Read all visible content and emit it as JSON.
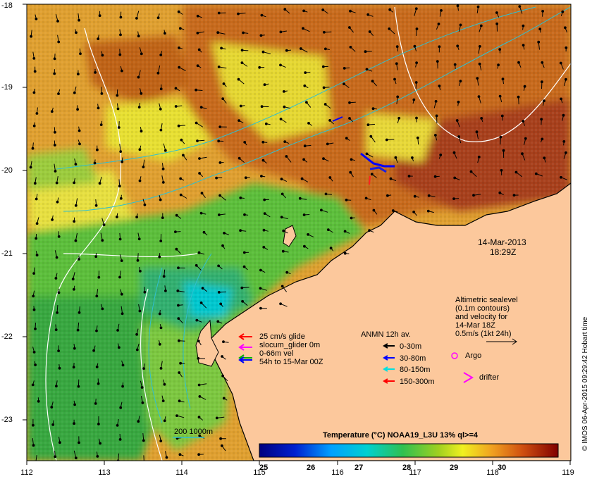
{
  "map": {
    "date": "14-Mar-2013",
    "time": "18:29Z",
    "x_axis_ticks": [
      "112",
      "113",
      "114",
      "115",
      "116",
      "117",
      "118",
      "119"
    ],
    "y_axis_ticks": [
      "-18",
      "-19",
      "-20",
      "-21",
      "-22",
      "-23"
    ],
    "credit": "© IMOS 06-Apr-2015 09:29:42 Hobart time"
  },
  "legend_glider": {
    "line1": "25 cm/s glide",
    "line2": "slocum_glider 0m",
    "line3": "0-66m vel",
    "line4": "54h to 15-Mar 00Z",
    "colors": [
      "#ff0000",
      "#ff00ff",
      "#00b000",
      "#0000ff"
    ]
  },
  "legend_anmn": {
    "title": "ANMN 12h av.",
    "items": [
      {
        "label": "0-30m",
        "color": "#000000"
      },
      {
        "label": "30-80m",
        "color": "#0000ff"
      },
      {
        "label": "80-150m",
        "color": "#00e0e0"
      },
      {
        "label": "150-300m",
        "color": "#ff0000"
      }
    ]
  },
  "legend_altimetry": {
    "line1": "Altimetric sealevel",
    "line2": "(0.1m contours)",
    "line3": "and velocity for",
    "line4": "14-Mar 18Z",
    "line5": "0.5m/s (1kt 24h)"
  },
  "legend_symbols": {
    "argo": "Argo",
    "drifter": "drifter"
  },
  "bathymetry": {
    "label": "200  1000m"
  },
  "colorbar": {
    "title": "Temperature (°C) NOAA19_L3U 13% ql>=4",
    "ticks": [
      "25",
      "26",
      "27",
      "28",
      "29",
      "30"
    ]
  },
  "colors": {
    "land": "#fcc89c",
    "hot": "#c04a10",
    "cold": "#00b8d8"
  }
}
